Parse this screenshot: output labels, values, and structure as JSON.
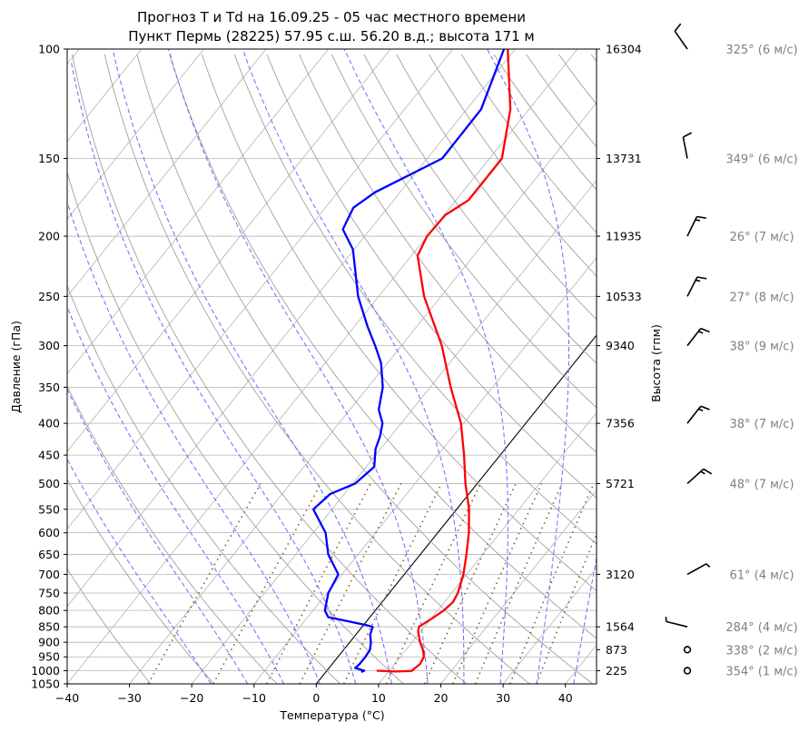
{
  "chart_data": {
    "type": "line",
    "subtype": "skew-T log-P diagram",
    "title": "Прогноз T и Td на 16.09.25 - 05 час местного времени",
    "subtitle": "Пункт Пермь (28225) 57.95 с.ш. 56.20 в.д.; высота 171 м",
    "xlabel": "Температура (°C)",
    "ylabel": "Давление (гПа)",
    "ylabel_right": "Высота (гпм)",
    "xlim": [
      -40,
      45
    ],
    "ylim": [
      1050,
      100
    ],
    "y_scale": "log",
    "grid": true,
    "x_ticks": [
      "−40",
      "−30",
      "−20",
      "−10",
      "0",
      "10",
      "20",
      "30",
      "40"
    ],
    "pressure_ticks": [
      100,
      150,
      200,
      250,
      300,
      350,
      400,
      450,
      500,
      550,
      600,
      650,
      700,
      750,
      800,
      850,
      900,
      950,
      1000,
      1050
    ],
    "height_ticks": [
      {
        "p": 100,
        "label": "16304"
      },
      {
        "p": 150,
        "label": "13731"
      },
      {
        "p": 200,
        "label": "11935"
      },
      {
        "p": 250,
        "label": "10533"
      },
      {
        "p": 300,
        "label": "9340"
      },
      {
        "p": 400,
        "label": "7356"
      },
      {
        "p": 500,
        "label": "5721"
      },
      {
        "p": 700,
        "label": "3120"
      },
      {
        "p": 850,
        "label": "1564"
      },
      {
        "p": 925,
        "label": "873"
      },
      {
        "p": 1000,
        "label": "225"
      }
    ],
    "series": [
      {
        "color": "#ff0000",
        "points": [
          {
            "p": 1000,
            "t": 8.0
          },
          {
            "p": 1003,
            "t": 11.2
          },
          {
            "p": 1001,
            "t": 13.6
          },
          {
            "p": 975,
            "t": 14.1
          },
          {
            "p": 950,
            "t": 13.8
          },
          {
            "p": 925,
            "t": 12.7
          },
          {
            "p": 900,
            "t": 11.3
          },
          {
            "p": 865,
            "t": 9.6
          },
          {
            "p": 850,
            "t": 9.1
          },
          {
            "p": 825,
            "t": 10.1
          },
          {
            "p": 800,
            "t": 11.0
          },
          {
            "p": 775,
            "t": 11.4
          },
          {
            "p": 750,
            "t": 11.0
          },
          {
            "p": 700,
            "t": 9.5
          },
          {
            "p": 650,
            "t": 7.4
          },
          {
            "p": 600,
            "t": 5.0
          },
          {
            "p": 550,
            "t": 2.0
          },
          {
            "p": 500,
            "t": -1.9
          },
          {
            "p": 450,
            "t": -5.8
          },
          {
            "p": 400,
            "t": -10.4
          },
          {
            "p": 350,
            "t": -16.7
          },
          {
            "p": 300,
            "t": -23.5
          },
          {
            "p": 250,
            "t": -32.7
          },
          {
            "p": 215,
            "t": -39.0
          },
          {
            "p": 200,
            "t": -40.0
          },
          {
            "p": 185,
            "t": -39.8
          },
          {
            "p": 175,
            "t": -38.0
          },
          {
            "p": 150,
            "t": -38.0
          },
          {
            "p": 125,
            "t": -43.0
          },
          {
            "p": 100,
            "t": -51.2
          }
        ]
      },
      {
        "color": "#0000ff",
        "points": [
          {
            "p": 1005,
            "t": 5.7
          },
          {
            "p": 1000,
            "t": 6.0
          },
          {
            "p": 990,
            "t": 4.2
          },
          {
            "p": 975,
            "t": 4.4
          },
          {
            "p": 950,
            "t": 4.4
          },
          {
            "p": 925,
            "t": 4.2
          },
          {
            "p": 900,
            "t": 3.4
          },
          {
            "p": 875,
            "t": 2.3
          },
          {
            "p": 850,
            "t": 1.7
          },
          {
            "p": 845,
            "t": 0.5
          },
          {
            "p": 820,
            "t": -6.7
          },
          {
            "p": 800,
            "t": -8.1
          },
          {
            "p": 750,
            "t": -9.8
          },
          {
            "p": 700,
            "t": -10.6
          },
          {
            "p": 650,
            "t": -14.8
          },
          {
            "p": 600,
            "t": -18.0
          },
          {
            "p": 550,
            "t": -23.0
          },
          {
            "p": 520,
            "t": -22.3
          },
          {
            "p": 500,
            "t": -19.6
          },
          {
            "p": 470,
            "t": -18.7
          },
          {
            "p": 440,
            "t": -20.8
          },
          {
            "p": 420,
            "t": -21.7
          },
          {
            "p": 400,
            "t": -23.0
          },
          {
            "p": 380,
            "t": -25.4
          },
          {
            "p": 350,
            "t": -27.6
          },
          {
            "p": 320,
            "t": -31.0
          },
          {
            "p": 300,
            "t": -34.2
          },
          {
            "p": 280,
            "t": -37.8
          },
          {
            "p": 250,
            "t": -43.3
          },
          {
            "p": 210,
            "t": -50.2
          },
          {
            "p": 195,
            "t": -54.4
          },
          {
            "p": 180,
            "t": -55.5
          },
          {
            "p": 170,
            "t": -54.0
          },
          {
            "p": 150,
            "t": -47.6
          },
          {
            "p": 125,
            "t": -47.7
          },
          {
            "p": 100,
            "t": -51.8
          }
        ]
      }
    ],
    "wind": [
      {
        "p": 100,
        "dir": 325,
        "speed": 6,
        "label": "325° (6 м/с)"
      },
      {
        "p": 150,
        "dir": 349,
        "speed": 6,
        "label": "349° (6 м/с)"
      },
      {
        "p": 200,
        "dir": 26,
        "speed": 7,
        "label": "26° (7 м/с)"
      },
      {
        "p": 250,
        "dir": 27,
        "speed": 8,
        "label": "27° (8 м/с)"
      },
      {
        "p": 300,
        "dir": 38,
        "speed": 9,
        "label": "38° (9 м/с)"
      },
      {
        "p": 400,
        "dir": 38,
        "speed": 7,
        "label": "38° (7 м/с)"
      },
      {
        "p": 500,
        "dir": 48,
        "speed": 7,
        "label": "48° (7 м/с)"
      },
      {
        "p": 700,
        "dir": 61,
        "speed": 4,
        "label": "61° (4 м/с)"
      },
      {
        "p": 850,
        "dir": 284,
        "speed": 4,
        "label": "284° (4 м/с)"
      },
      {
        "p": 925,
        "dir": 338,
        "speed": 2,
        "label": "338° (2 м/с)"
      },
      {
        "p": 1000,
        "dir": 354,
        "speed": 1,
        "label": "354° (1 м/с)"
      }
    ],
    "colors": {
      "temperature": "#ff0000",
      "dewpoint": "#0000ff",
      "dry_adiabats": "#a0a0a0",
      "isotherms": "#b4b4b4",
      "moist_adiabats": "#6a6aff",
      "mixing_ratio": "#8b5a2b",
      "zero_isotherm": "#000000",
      "wind_text": "#808080"
    }
  }
}
